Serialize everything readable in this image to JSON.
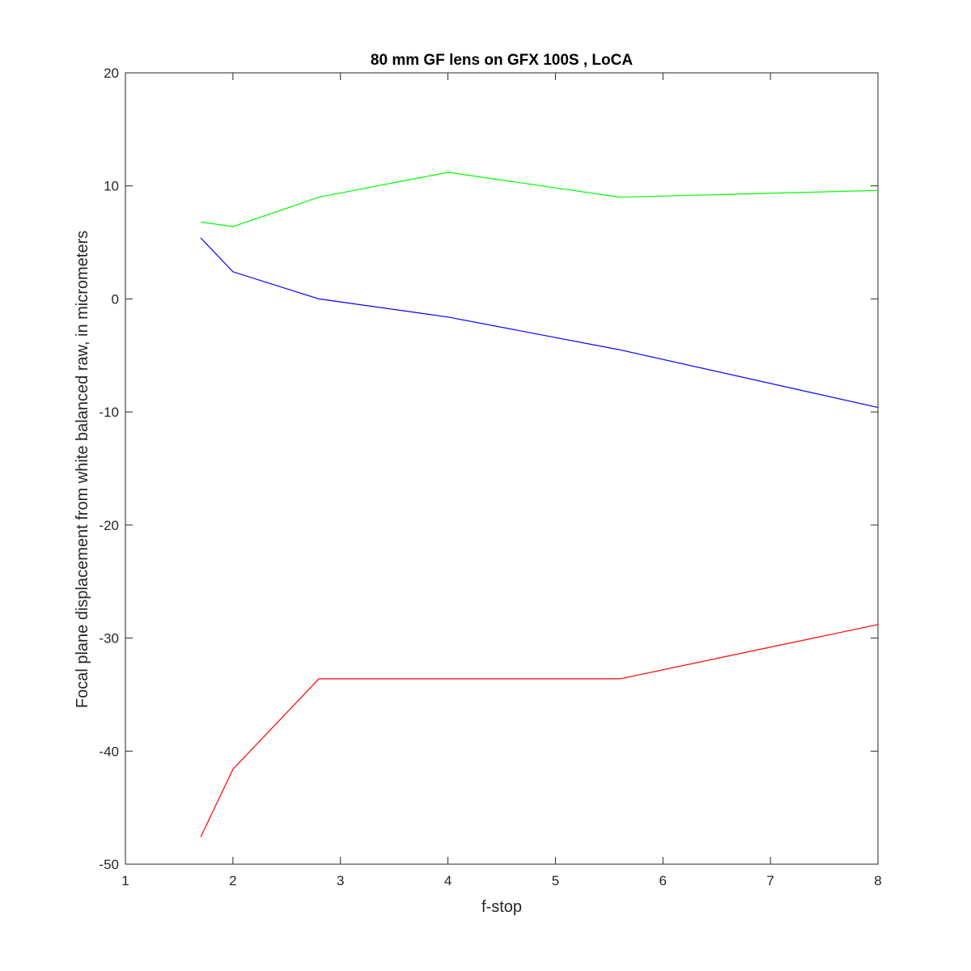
{
  "chart_data": {
    "type": "line",
    "title": "80 mm GF lens on GFX 100S , LoCA",
    "xlabel": "f-stop",
    "ylabel": "Focal plane displacement from white balanced raw, in micrometers",
    "xlim": [
      1,
      8
    ],
    "ylim": [
      -50,
      20
    ],
    "xticks": [
      "1",
      "2",
      "3",
      "4",
      "5",
      "6",
      "7",
      "8"
    ],
    "yticks": [
      "20",
      "10",
      "0",
      "-10",
      "-20",
      "-30",
      "-40",
      "-50"
    ],
    "grid": false,
    "legend": false,
    "series": [
      {
        "color": "#00ff00",
        "x": [
          1.7,
          2,
          2.8,
          4,
          5.6,
          8
        ],
        "y": [
          6.8,
          6.4,
          9.0,
          11.2,
          9.0,
          9.6
        ]
      },
      {
        "color": "#0000ff",
        "x": [
          1.7,
          2,
          2.8,
          4,
          5.6,
          8
        ],
        "y": [
          5.4,
          2.4,
          0.0,
          -1.6,
          -4.5,
          -9.6
        ]
      },
      {
        "color": "#ff0000",
        "x": [
          1.7,
          2,
          2.8,
          4,
          5.6,
          8
        ],
        "y": [
          -47.6,
          -41.6,
          -33.6,
          -33.6,
          -33.6,
          -28.8
        ]
      }
    ]
  }
}
